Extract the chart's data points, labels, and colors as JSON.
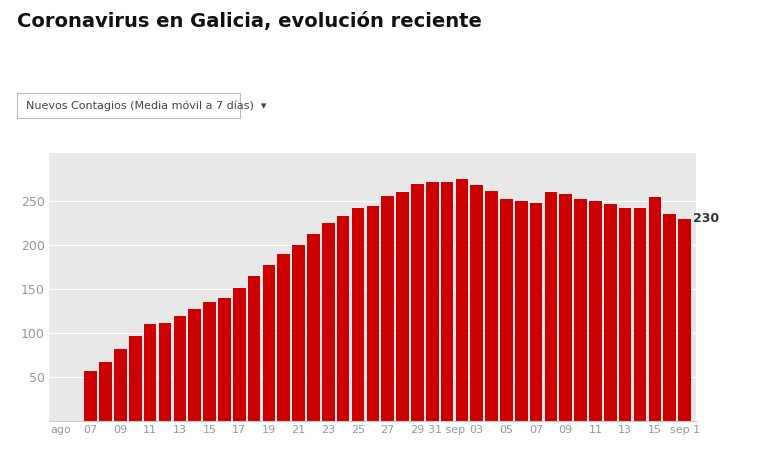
{
  "title": "Coronavirus en Galicia, evolución reciente",
  "dropdown_label": "Nuevos Contagios (Media móvil a 7 días)  ▾",
  "bar_color": "#cc0000",
  "plot_bg_color": "#e8e8e8",
  "fig_bg_color": "#ffffff",
  "ylabel_color": "#999999",
  "xlabel_color": "#999999",
  "last_value_label": "230",
  "last_value_color": "#333333",
  "yticks": [
    50,
    100,
    150,
    200,
    250
  ],
  "ylim": [
    0,
    305
  ],
  "bar_values": [
    0,
    0,
    57,
    67,
    82,
    97,
    110,
    112,
    120,
    128,
    135,
    140,
    152,
    165,
    178,
    190,
    200,
    213,
    225,
    233,
    242,
    245,
    256,
    261,
    270,
    272,
    272,
    275,
    268,
    262,
    252,
    250,
    248,
    261,
    258,
    253,
    250,
    247,
    242,
    242,
    255,
    235,
    230
  ],
  "tick_positions": [
    0,
    2,
    4,
    6,
    8,
    10,
    12,
    14,
    16,
    18,
    20,
    22,
    24,
    26,
    28,
    30,
    32,
    34,
    36,
    38,
    40,
    42
  ],
  "tick_labels": [
    "ago",
    "07",
    "09",
    "11",
    "13",
    "15",
    "17",
    "19",
    "21",
    "23",
    "25",
    "27",
    "29",
    "31 sep",
    "03",
    "05",
    "07",
    "09",
    "11",
    "13",
    "15",
    "sep 1"
  ],
  "title_fontsize": 14,
  "dropdown_fontsize": 8,
  "tick_fontsize": 8,
  "ytick_fontsize": 9
}
